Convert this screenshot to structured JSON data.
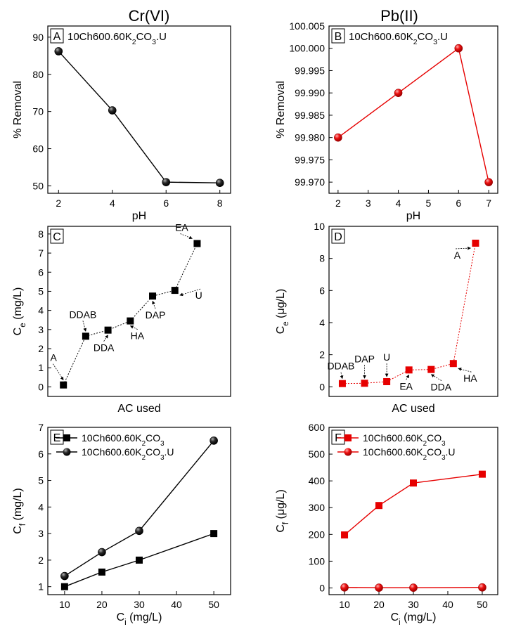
{
  "columns": [
    {
      "title": "Cr(VI)"
    },
    {
      "title": "Pb(II)"
    }
  ],
  "chart_data": [
    {
      "panel": "A",
      "type": "line",
      "annotation": "10Ch600.60K2CO3.U",
      "xlabel": "pH",
      "ylabel": "% Removal",
      "xlim": [
        1.6,
        8.4
      ],
      "ylim": [
        48,
        93
      ],
      "xticks": [
        2,
        4,
        6,
        8
      ],
      "yticks": [
        50,
        60,
        70,
        80,
        90
      ],
      "ytick_labels": [
        "50",
        "60",
        "70",
        "80",
        "90"
      ],
      "series": [
        {
          "color": "#000000",
          "marker": "sphere",
          "x": [
            2,
            4,
            6,
            8
          ],
          "y": [
            86.2,
            70.3,
            51.0,
            50.8
          ]
        }
      ]
    },
    {
      "panel": "B",
      "type": "line",
      "annotation": "10Ch600.60K2CO3.U",
      "xlabel": "pH",
      "ylabel": "% Removal",
      "xlim": [
        1.7,
        7.3
      ],
      "ylim": [
        99.9675,
        100.005
      ],
      "xticks": [
        2,
        3,
        4,
        5,
        6,
        7
      ],
      "yticks": [
        99.97,
        99.975,
        99.98,
        99.985,
        99.99,
        99.995,
        100.0,
        100.005
      ],
      "ytick_labels": [
        "99.970",
        "99.975",
        "99.980",
        "99.985",
        "99.990",
        "99.995",
        "100.000",
        "100.005"
      ],
      "series": [
        {
          "color": "#e60000",
          "marker": "sphere",
          "x": [
            2,
            4,
            6,
            7
          ],
          "y": [
            99.98,
            99.99,
            100.0,
            99.97
          ]
        }
      ]
    },
    {
      "panel": "C",
      "type": "line",
      "xlabel": "AC used",
      "ylabel": "Ce (mg/L)",
      "xlim": [
        0.3,
        8.5
      ],
      "ylim": [
        -0.5,
        8.4
      ],
      "yticks": [
        0,
        1,
        2,
        3,
        4,
        5,
        6,
        7,
        8
      ],
      "ytick_labels": [
        "0",
        "1",
        "2",
        "3",
        "4",
        "5",
        "6",
        "7",
        "8"
      ],
      "series": [
        {
          "color": "#000000",
          "marker": "square",
          "dotted": true,
          "x": [
            1,
            2,
            3,
            4,
            5,
            6,
            7
          ],
          "y": [
            0.1,
            2.65,
            2.97,
            3.45,
            4.75,
            5.05,
            7.5
          ],
          "labels": [
            "A",
            "DDAB",
            "DDA",
            "HA",
            "DAP",
            "U",
            "EA"
          ]
        }
      ]
    },
    {
      "panel": "D",
      "type": "line",
      "xlabel": "AC used",
      "ylabel": "Ce (μg/L)",
      "xlim": [
        0.4,
        8.0
      ],
      "ylim": [
        -0.6,
        10
      ],
      "yticks": [
        0,
        2,
        4,
        6,
        8,
        10
      ],
      "ytick_labels": [
        "0",
        "2",
        "4",
        "6",
        "8",
        "10"
      ],
      "series": [
        {
          "color": "#e60000",
          "marker": "square",
          "dotted": true,
          "x": [
            1,
            2,
            3,
            4,
            5,
            6,
            7
          ],
          "y": [
            0.2,
            0.22,
            0.32,
            1.05,
            1.08,
            1.45,
            8.95
          ],
          "labels": [
            "DDAB",
            "DAP",
            "U",
            "EA",
            "DDA",
            "HA",
            "A"
          ]
        }
      ]
    },
    {
      "panel": "E",
      "type": "line",
      "xlabel": "Ci (mg/L)",
      "ylabel": "Cf (mg/L)",
      "xlim": [
        5.5,
        54.5
      ],
      "ylim": [
        0.7,
        7.0
      ],
      "xticks": [
        10,
        20,
        30,
        40,
        50
      ],
      "yticks": [
        1,
        2,
        3,
        4,
        5,
        6,
        7
      ],
      "ytick_labels": [
        "1",
        "2",
        "3",
        "4",
        "5",
        "6",
        "7"
      ],
      "legend": "top-left",
      "series": [
        {
          "name": "10Ch600.60K2CO3",
          "color": "#000000",
          "marker": "square",
          "x": [
            10,
            20,
            30,
            50
          ],
          "y": [
            1.0,
            1.55,
            2.0,
            3.0
          ]
        },
        {
          "name": "10Ch600.60K2CO3.U",
          "color": "#000000",
          "marker": "sphere",
          "x": [
            10,
            20,
            30,
            50
          ],
          "y": [
            1.4,
            2.3,
            3.1,
            6.5
          ]
        }
      ]
    },
    {
      "panel": "F",
      "type": "line",
      "xlabel": "Ci (mg/L)",
      "ylabel": "Cf (μg/L)",
      "xlim": [
        5.5,
        54.5
      ],
      "ylim": [
        -25,
        600
      ],
      "xticks": [
        10,
        20,
        30,
        40,
        50
      ],
      "yticks": [
        0,
        100,
        200,
        300,
        400,
        500,
        600
      ],
      "ytick_labels": [
        "0",
        "100",
        "200",
        "300",
        "400",
        "500",
        "600"
      ],
      "legend": "top-left",
      "series": [
        {
          "name": "10Ch600.60K2CO3",
          "color": "#e60000",
          "marker": "square",
          "x": [
            10,
            20,
            30,
            50
          ],
          "y": [
            198,
            308,
            392,
            425
          ]
        },
        {
          "name": "10Ch600.60K2CO3.U",
          "color": "#e60000",
          "marker": "sphere",
          "x": [
            10,
            20,
            30,
            50
          ],
          "y": [
            2,
            1,
            1,
            2
          ]
        }
      ]
    }
  ]
}
